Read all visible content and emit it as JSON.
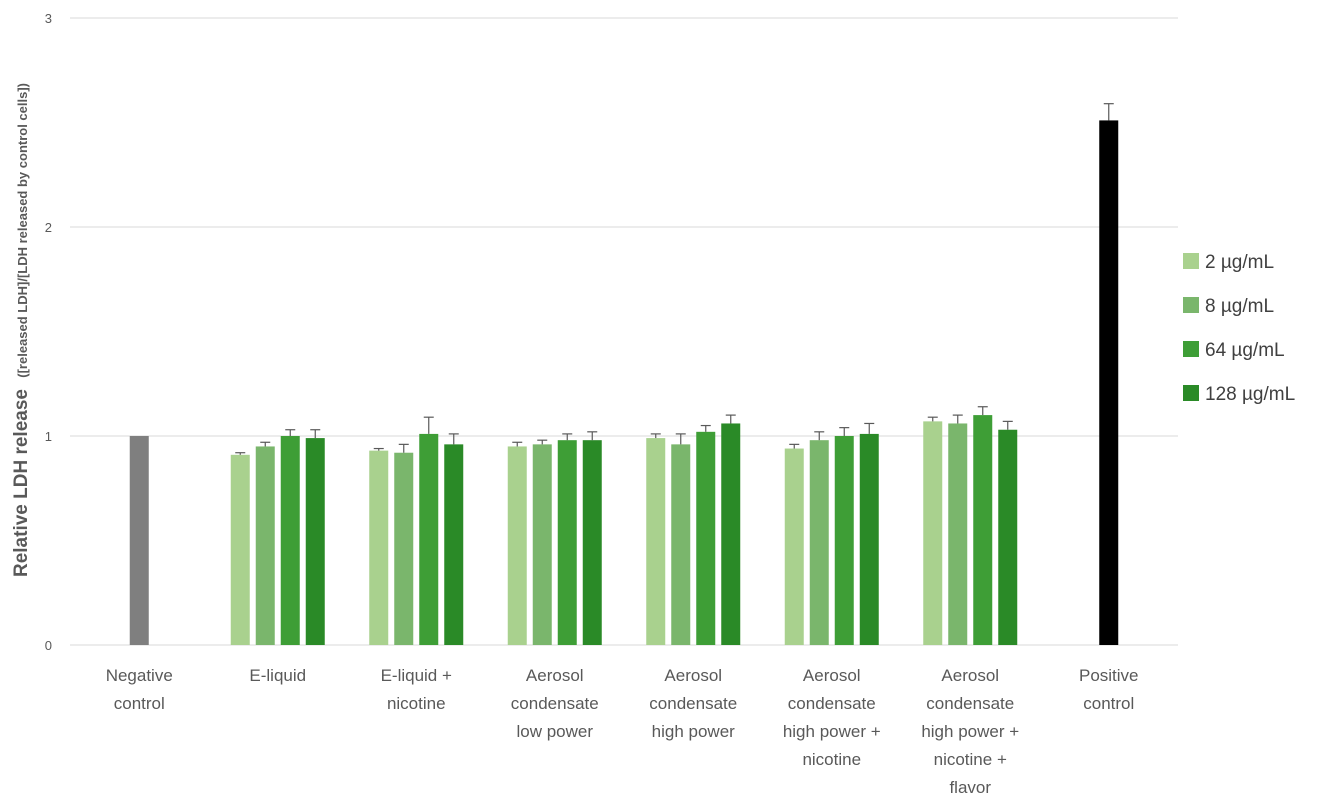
{
  "chart_data": {
    "type": "bar",
    "ylabel": "Relative LDH release",
    "ylabel_sub": "([released LDH]/[LDH released by control cells])",
    "xlabel": "",
    "title": "",
    "ylim": [
      0,
      3
    ],
    "yticks": [
      "0",
      "1",
      "2",
      "3"
    ],
    "grid": true,
    "legend_position": "right",
    "categories": [
      [
        "Negative",
        "control"
      ],
      [
        "E-liquid"
      ],
      [
        "E-liquid +",
        "nicotine"
      ],
      [
        "Aerosol",
        "condensate",
        "low power"
      ],
      [
        "Aerosol",
        "condensate",
        "high power"
      ],
      [
        "Aerosol",
        "condensate",
        "high power +",
        "nicotine"
      ],
      [
        "Aerosol",
        "condensate",
        "high power +",
        "nicotine +",
        "flavor"
      ],
      [
        "Positive",
        "control"
      ]
    ],
    "series": [
      {
        "name": "2 µg/mL",
        "color": "#a9d18e",
        "values": [
          null,
          0.91,
          0.93,
          0.95,
          0.99,
          0.94,
          1.07,
          null
        ],
        "errors": [
          null,
          0.01,
          0.01,
          0.02,
          0.02,
          0.02,
          0.02,
          null
        ]
      },
      {
        "name": "8 µg/mL",
        "color": "#7ab66c",
        "values": [
          null,
          0.95,
          0.92,
          0.96,
          0.96,
          0.98,
          1.06,
          null
        ],
        "errors": [
          null,
          0.02,
          0.04,
          0.02,
          0.05,
          0.04,
          0.04,
          null
        ]
      },
      {
        "name": "64 µg/mL",
        "color": "#3e9e36",
        "values": [
          null,
          1.0,
          1.01,
          0.98,
          1.02,
          1.0,
          1.1,
          null
        ],
        "errors": [
          null,
          0.03,
          0.08,
          0.03,
          0.03,
          0.04,
          0.04,
          null
        ]
      },
      {
        "name": "128 µg/mL",
        "color": "#2a8a27",
        "values": [
          null,
          0.99,
          0.96,
          0.98,
          1.06,
          1.01,
          1.03,
          null
        ],
        "errors": [
          null,
          0.04,
          0.05,
          0.04,
          0.04,
          0.05,
          0.04,
          null
        ]
      }
    ],
    "controls": [
      {
        "category_index": 0,
        "value": 1.0,
        "error": 0,
        "color": "#7f7f7f"
      },
      {
        "category_index": 7,
        "value": 2.51,
        "error": 0.08,
        "color": "#000000"
      }
    ]
  }
}
